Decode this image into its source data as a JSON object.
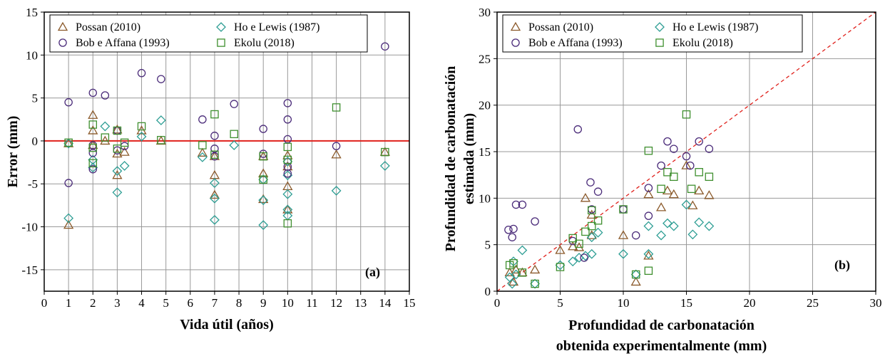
{
  "colors": {
    "possan": "#8B5A2B",
    "ho": "#2E9E94",
    "bob": "#4B2C7A",
    "ekolu": "#3F8F2F",
    "zero_line": "#E0201B",
    "identity_line": "#E0201B",
    "grid": "#999999"
  },
  "chart_data": [
    {
      "type": "scatter",
      "panel_label": "(a)",
      "xlabel": "Vida útil (años)",
      "ylabel": "Error (mm)",
      "xlim": [
        0,
        15
      ],
      "ylim": [
        -17.5,
        15
      ],
      "xticks": [
        0,
        1,
        2,
        3,
        4,
        5,
        6,
        7,
        8,
        9,
        10,
        11,
        12,
        13,
        14,
        15
      ],
      "yticks": [
        -15,
        -10,
        -5,
        0,
        5,
        10,
        15
      ],
      "grid": true,
      "reference_line": {
        "type": "horizontal",
        "y": 0
      },
      "legend_position": "top",
      "series": [
        {
          "name": "Possan (2010)",
          "marker": "triangle",
          "color_key": "possan",
          "points": [
            [
              1,
              -0.3
            ],
            [
              1,
              -9.8
            ],
            [
              2,
              3.0
            ],
            [
              2,
              1.2
            ],
            [
              2,
              -0.5
            ],
            [
              2.5,
              0.0
            ],
            [
              3,
              1.3
            ],
            [
              3,
              -1.5
            ],
            [
              3,
              -4.0
            ],
            [
              3.3,
              -1.3
            ],
            [
              4,
              1.2
            ],
            [
              4.8,
              0.0
            ],
            [
              6.5,
              -1.4
            ],
            [
              7,
              -1.8
            ],
            [
              7,
              -4.0
            ],
            [
              7,
              -6.3
            ],
            [
              9,
              -1.8
            ],
            [
              9,
              -3.8
            ],
            [
              9,
              -6.8
            ],
            [
              10,
              -1.7
            ],
            [
              10,
              -3.0
            ],
            [
              10,
              -5.3
            ],
            [
              10,
              -8.0
            ],
            [
              12,
              -1.6
            ],
            [
              14,
              -1.3
            ]
          ]
        },
        {
          "name": "Ho e Lewis (1987)",
          "marker": "diamond",
          "color_key": "ho",
          "points": [
            [
              1,
              -0.3
            ],
            [
              1,
              -9.0
            ],
            [
              2,
              -2.2
            ],
            [
              2,
              -3.1
            ],
            [
              2.5,
              1.7
            ],
            [
              3,
              -3.5
            ],
            [
              3,
              -6.0
            ],
            [
              3.3,
              -2.9
            ],
            [
              4,
              0.5
            ],
            [
              4.8,
              2.4
            ],
            [
              6.5,
              -1.9
            ],
            [
              7,
              -4.9
            ],
            [
              7,
              -6.7
            ],
            [
              7,
              -9.2
            ],
            [
              7.8,
              -0.5
            ],
            [
              9,
              -4.5
            ],
            [
              9,
              -6.9
            ],
            [
              9,
              -9.8
            ],
            [
              10,
              -2.4
            ],
            [
              10,
              -4.0
            ],
            [
              10,
              -6.2
            ],
            [
              10,
              -8.0
            ],
            [
              10,
              -8.7
            ],
            [
              12,
              -5.8
            ],
            [
              14,
              -2.9
            ]
          ]
        },
        {
          "name": "Bob e Affana (1993)",
          "marker": "circle",
          "color_key": "bob",
          "points": [
            [
              1,
              4.5
            ],
            [
              1,
              -4.9
            ],
            [
              2,
              5.6
            ],
            [
              2,
              -0.5
            ],
            [
              2,
              -1.4
            ],
            [
              2,
              -3.3
            ],
            [
              2.5,
              5.3
            ],
            [
              3,
              1.2
            ],
            [
              3,
              -1.1
            ],
            [
              3.3,
              -0.6
            ],
            [
              4,
              7.9
            ],
            [
              4.8,
              7.2
            ],
            [
              6.5,
              2.5
            ],
            [
              7,
              0.6
            ],
            [
              7,
              -0.9
            ],
            [
              7,
              -1.8
            ],
            [
              7.8,
              4.3
            ],
            [
              9,
              1.4
            ],
            [
              9,
              -1.5
            ],
            [
              10,
              4.4
            ],
            [
              10,
              2.5
            ],
            [
              10,
              0.2
            ],
            [
              10,
              -3.0
            ],
            [
              10,
              -3.8
            ],
            [
              12,
              -0.6
            ],
            [
              14,
              11.0
            ]
          ]
        },
        {
          "name": "Ekolu  (2018)",
          "marker": "square",
          "color_key": "ekolu",
          "points": [
            [
              1,
              -0.2
            ],
            [
              2,
              1.9
            ],
            [
              2,
              -0.8
            ],
            [
              2,
              -2.6
            ],
            [
              2.5,
              0.4
            ],
            [
              3,
              1.2
            ],
            [
              3,
              -0.9
            ],
            [
              3.3,
              -0.2
            ],
            [
              4,
              1.7
            ],
            [
              4.8,
              0.1
            ],
            [
              6.5,
              -0.5
            ],
            [
              7,
              3.1
            ],
            [
              7,
              -1.6
            ],
            [
              7.8,
              0.8
            ],
            [
              9,
              -4.5
            ],
            [
              9,
              -1.8
            ],
            [
              10,
              -0.7
            ],
            [
              10,
              -2.2
            ],
            [
              10,
              -9.6
            ],
            [
              12,
              3.9
            ],
            [
              14,
              -1.3
            ]
          ]
        }
      ]
    },
    {
      "type": "scatter",
      "panel_label": "(b)",
      "xlabel": "Profundidad de carbonatación obtenida experimentalmente (mm)",
      "xlabel_lines": [
        "Profundidad de carbonatación",
        "obtenida experimentalmente (mm)"
      ],
      "ylabel": "Profundidad de carbonatación estimada (mm)",
      "ylabel_lines": [
        "Profundidad de carbonatación",
        "estimada (mm)"
      ],
      "xlim": [
        0,
        30
      ],
      "ylim": [
        0,
        30
      ],
      "xticks": [
        0,
        5,
        10,
        15,
        20,
        25,
        30
      ],
      "yticks": [
        0,
        5,
        10,
        15,
        20,
        25,
        30
      ],
      "grid": true,
      "reference_line": {
        "type": "identity"
      },
      "legend_position": "top",
      "series": [
        {
          "name": "Possan (2010)",
          "marker": "triangle",
          "color_key": "possan",
          "points": [
            [
              1.0,
              2.0
            ],
            [
              1.3,
              1.0
            ],
            [
              1.5,
              2.3
            ],
            [
              2.0,
              2.0
            ],
            [
              3.0,
              2.3
            ],
            [
              5.0,
              4.4
            ],
            [
              6.0,
              4.8
            ],
            [
              6.5,
              4.7
            ],
            [
              7.0,
              10.0
            ],
            [
              7.5,
              6.0
            ],
            [
              7.5,
              8.2
            ],
            [
              10.0,
              6.0
            ],
            [
              11.0,
              1.0
            ],
            [
              12.0,
              10.4
            ],
            [
              12.0,
              3.8
            ],
            [
              13.0,
              9.0
            ],
            [
              13.5,
              10.8
            ],
            [
              14.0,
              10.4
            ],
            [
              15.0,
              13.5
            ],
            [
              15.5,
              9.2
            ],
            [
              16.0,
              10.8
            ],
            [
              16.8,
              10.3
            ]
          ]
        },
        {
          "name": "Ho e Lewis (1987)",
          "marker": "diamond",
          "color_key": "ho",
          "points": [
            [
              1.0,
              1.5
            ],
            [
              1.2,
              0.8
            ],
            [
              1.3,
              3.2
            ],
            [
              1.5,
              1.8
            ],
            [
              2.0,
              4.4
            ],
            [
              3.0,
              0.8
            ],
            [
              5.0,
              2.8
            ],
            [
              6.0,
              3.2
            ],
            [
              6.5,
              3.6
            ],
            [
              7.0,
              3.8
            ],
            [
              7.5,
              4.0
            ],
            [
              7.5,
              5.8
            ],
            [
              8.0,
              6.3
            ],
            [
              10.0,
              4.0
            ],
            [
              11.0,
              1.8
            ],
            [
              12.0,
              7.0
            ],
            [
              12.0,
              4.0
            ],
            [
              13.0,
              6.0
            ],
            [
              13.5,
              7.3
            ],
            [
              14.0,
              7.0
            ],
            [
              15.0,
              9.3
            ],
            [
              15.5,
              6.1
            ],
            [
              16.0,
              7.4
            ],
            [
              16.8,
              7.0
            ]
          ]
        },
        {
          "name": "Bob e Affana (1993)",
          "marker": "circle",
          "color_key": "bob",
          "points": [
            [
              0.9,
              6.6
            ],
            [
              1.2,
              5.8
            ],
            [
              1.3,
              6.7
            ],
            [
              1.5,
              9.3
            ],
            [
              2.0,
              9.3
            ],
            [
              3.0,
              7.5
            ],
            [
              6.0,
              5.4
            ],
            [
              6.4,
              17.4
            ],
            [
              6.9,
              3.6
            ],
            [
              7.4,
              11.7
            ],
            [
              7.5,
              8.8
            ],
            [
              8.0,
              10.7
            ],
            [
              10.0,
              8.8
            ],
            [
              11.0,
              6.0
            ],
            [
              12.0,
              8.1
            ],
            [
              12.0,
              11.1
            ],
            [
              13.0,
              13.5
            ],
            [
              13.5,
              16.1
            ],
            [
              14.0,
              15.3
            ],
            [
              15.0,
              14.5
            ],
            [
              15.3,
              13.5
            ],
            [
              16.0,
              16.1
            ],
            [
              16.8,
              15.3
            ]
          ]
        },
        {
          "name": "Ekolu  (2018)",
          "marker": "square",
          "color_key": "ekolu",
          "points": [
            [
              1.0,
              2.8
            ],
            [
              1.3,
              3.0
            ],
            [
              2.0,
              2.0
            ],
            [
              3.0,
              0.8
            ],
            [
              5.0,
              2.6
            ],
            [
              6.0,
              5.7
            ],
            [
              6.5,
              5.1
            ],
            [
              7.0,
              6.4
            ],
            [
              7.5,
              7.0
            ],
            [
              7.5,
              8.7
            ],
            [
              8.0,
              7.6
            ],
            [
              10.0,
              8.8
            ],
            [
              11.0,
              1.8
            ],
            [
              12.0,
              15.1
            ],
            [
              12.0,
              2.2
            ],
            [
              13.0,
              11.0
            ],
            [
              13.5,
              12.8
            ],
            [
              14.0,
              12.3
            ],
            [
              15.0,
              19.0
            ],
            [
              15.4,
              11.0
            ],
            [
              16.0,
              12.8
            ],
            [
              16.8,
              12.3
            ]
          ]
        }
      ]
    }
  ]
}
